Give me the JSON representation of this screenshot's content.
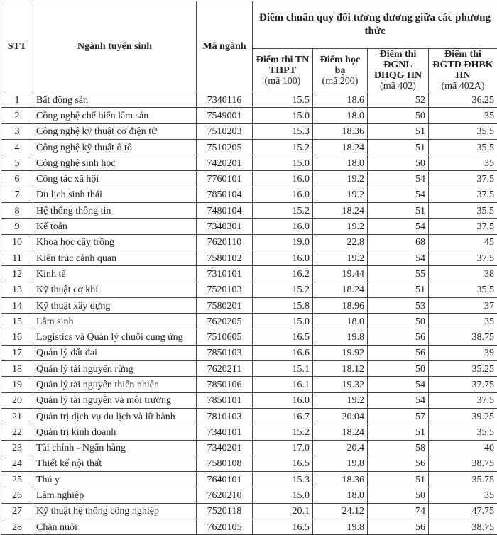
{
  "header": {
    "stt": "STT",
    "major": "Ngành tuyển sinh",
    "code": "Mã ngành",
    "group": "Điểm chuẩn quy đổi tương đương giữa các phương thức",
    "methods": [
      {
        "title": "Điểm thi TN THPT",
        "sub": "(mã 100)"
      },
      {
        "title": "Điểm học bạ",
        "sub": "(mã 200)"
      },
      {
        "title": "Điểm thi ĐGNL ĐHQG HN",
        "sub": "(mã 402)"
      },
      {
        "title": "Điểm thi ĐGTD ĐHBK HN",
        "sub": "(mã 402A)"
      }
    ]
  },
  "rows": [
    [
      "1",
      "Bất động sản",
      "7340116",
      "15.5",
      "18.6",
      "52",
      "36.25"
    ],
    [
      "2",
      "Công nghệ chế biến lâm sản",
      "7549001",
      "15.0",
      "18.0",
      "50",
      "35"
    ],
    [
      "3",
      "Công nghệ kỹ thuật cơ điện tử",
      "7510203",
      "15.3",
      "18.36",
      "51",
      "35.5"
    ],
    [
      "4",
      "Công nghệ kỹ thuật ô tô",
      "7510205",
      "15.2",
      "18.24",
      "51",
      "35.5"
    ],
    [
      "5",
      "Công nghệ sinh học",
      "7420201",
      "15.0",
      "18.0",
      "50",
      "35"
    ],
    [
      "6",
      "Công tác xã hội",
      "7760101",
      "16.0",
      "19.2",
      "54",
      "37.5"
    ],
    [
      "7",
      "Du lịch sinh thái",
      "7850104",
      "16.0",
      "19.2",
      "54",
      "37.5"
    ],
    [
      "8",
      "Hệ thống thông tin",
      "7480104",
      "15.2",
      "18.24",
      "51",
      "35.5"
    ],
    [
      "9",
      "Kế toán",
      "7340301",
      "16.0",
      "19.2",
      "54",
      "37.5"
    ],
    [
      "10",
      "Khoa học cây trồng",
      "7620110",
      "19.0",
      "22.8",
      "68",
      "45"
    ],
    [
      "11",
      "Kiến trúc cảnh quan",
      "7580102",
      "16.0",
      "19.2",
      "54",
      "37.5"
    ],
    [
      "12",
      "Kinh tế",
      "7310101",
      "16.2",
      "19.44",
      "55",
      "38"
    ],
    [
      "13",
      "Kỹ thuật cơ khí",
      "7520103",
      "15.2",
      "18.24",
      "51",
      "35.5"
    ],
    [
      "14",
      "Kỹ thuật xây dựng",
      "7580201",
      "15.8",
      "18.96",
      "53",
      "37"
    ],
    [
      "15",
      "Lâm sinh",
      "7620205",
      "15.0",
      "18.0",
      "50",
      "35"
    ],
    [
      "16",
      "Logistics và Quản lý chuỗi cung ứng",
      "7510605",
      "16.5",
      "19.8",
      "56",
      "38.75"
    ],
    [
      "17",
      "Quản lý đất đai",
      "7850103",
      "16.6",
      "19.92",
      "56",
      "39"
    ],
    [
      "18",
      "Quản lý tài nguyên rừng",
      "7620211",
      "15.1",
      "18.12",
      "50",
      "35.25"
    ],
    [
      "19",
      "Quản lý tài nguyên thiên nhiên",
      "7850106",
      "16.1",
      "19.32",
      "54",
      "37.75"
    ],
    [
      "20",
      "Quản lý tài nguyên và môi trường",
      "7850101",
      "16.0",
      "19.2",
      "54",
      "37.5"
    ],
    [
      "21",
      "Quản trị dịch vụ du lịch và lữ hành",
      "7810103",
      "16.7",
      "20.04",
      "57",
      "39.25"
    ],
    [
      "22",
      "Quản trị kinh doanh",
      "7340101",
      "15.2",
      "18.24",
      "51",
      "35.5"
    ],
    [
      "23",
      "Tài chính - Ngân hàng",
      "7340201",
      "17.0",
      "20.4",
      "58",
      "40"
    ],
    [
      "24",
      "Thiết kế nội thất",
      "7580108",
      "16.5",
      "19.8",
      "56",
      "38.75"
    ],
    [
      "25",
      "Thú y",
      "7640101",
      "15.3",
      "18.36",
      "51",
      "35.75"
    ],
    [
      "26",
      "Lâm nghiệp",
      "7620210",
      "15.0",
      "18.0",
      "50",
      "35"
    ],
    [
      "27",
      "Kỹ thuật hệ thống công nghiệp",
      "7520118",
      "20.1",
      "24.12",
      "74",
      "47.75"
    ],
    [
      "28",
      "Chăn nuôi",
      "7620105",
      "16.5",
      "19.8",
      "56",
      "38.75"
    ]
  ]
}
